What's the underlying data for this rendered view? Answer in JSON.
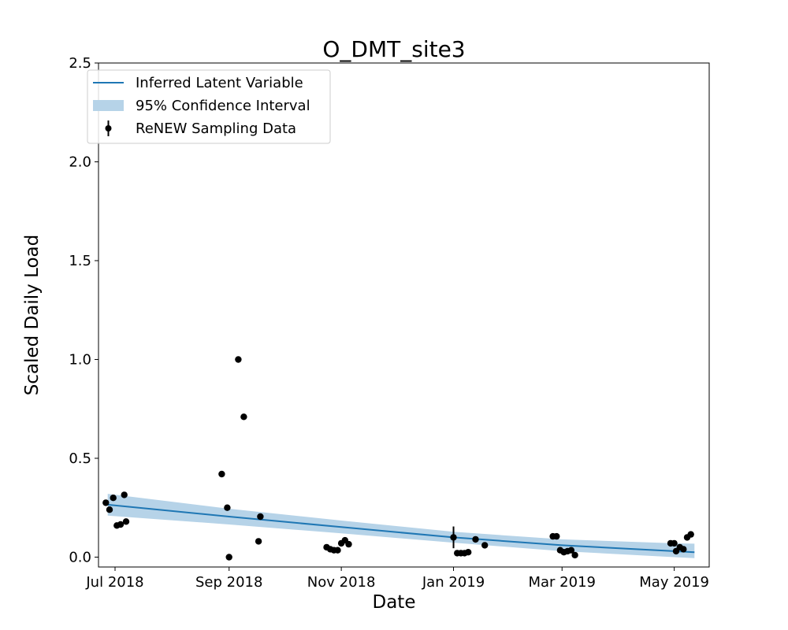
{
  "chart_data": {
    "type": "scatter",
    "title": "O_DMT_site3",
    "xlabel": "Date",
    "ylabel": "Scaled Daily Load",
    "xlim": [
      "2018-06-22",
      "2019-05-20"
    ],
    "ylim": [
      -0.05,
      2.5
    ],
    "x_ticks": [
      {
        "date": "2018-07-01",
        "label": "Jul 2018"
      },
      {
        "date": "2018-09-01",
        "label": "Sep 2018"
      },
      {
        "date": "2018-11-01",
        "label": "Nov 2018"
      },
      {
        "date": "2019-01-01",
        "label": "Jan 2019"
      },
      {
        "date": "2019-03-01",
        "label": "Mar 2019"
      },
      {
        "date": "2019-05-01",
        "label": "May 2019"
      }
    ],
    "y_ticks": [
      {
        "value": 0.0,
        "label": "0.0"
      },
      {
        "value": 0.5,
        "label": "0.5"
      },
      {
        "value": 1.0,
        "label": "1.0"
      },
      {
        "value": 1.5,
        "label": "1.5"
      },
      {
        "value": 2.0,
        "label": "2.0"
      },
      {
        "value": 2.5,
        "label": "2.5"
      }
    ],
    "grid": false,
    "legend_position": "top-left",
    "legend": [
      {
        "label": "Inferred Latent Variable",
        "kind": "line"
      },
      {
        "label": "95% Confidence Interval",
        "kind": "band"
      },
      {
        "label": "ReNEW Sampling Data",
        "kind": "errorbar"
      }
    ],
    "colors": {
      "line": "#1f77b4",
      "band": "#b6d3e8",
      "points": "#000000"
    },
    "series": [
      {
        "name": "Inferred Latent Variable",
        "kind": "line",
        "x": [
          "2018-06-27",
          "2018-09-01",
          "2018-11-01",
          "2019-01-01",
          "2019-03-01",
          "2019-05-01",
          "2019-05-12"
        ],
        "y": [
          0.265,
          0.205,
          0.152,
          0.1,
          0.06,
          0.03,
          0.025
        ]
      },
      {
        "name": "95% Confidence Interval",
        "kind": "band",
        "x": [
          "2018-06-27",
          "2018-09-01",
          "2018-11-01",
          "2019-01-01",
          "2019-03-01",
          "2019-05-01",
          "2019-05-12"
        ],
        "lower": [
          0.21,
          0.165,
          0.12,
          0.073,
          0.03,
          0.0,
          -0.005
        ],
        "upper": [
          0.32,
          0.245,
          0.185,
          0.128,
          0.09,
          0.07,
          0.068
        ]
      },
      {
        "name": "ReNEW Sampling Data",
        "kind": "scatter",
        "points": [
          {
            "x": "2018-06-26",
            "y": 0.275
          },
          {
            "x": "2018-06-28",
            "y": 0.24
          },
          {
            "x": "2018-06-30",
            "y": 0.3
          },
          {
            "x": "2018-07-02",
            "y": 0.16
          },
          {
            "x": "2018-07-04",
            "y": 0.165
          },
          {
            "x": "2018-07-06",
            "y": 0.315
          },
          {
            "x": "2018-07-07",
            "y": 0.18
          },
          {
            "x": "2018-08-28",
            "y": 0.42
          },
          {
            "x": "2018-08-31",
            "y": 0.25
          },
          {
            "x": "2018-09-01",
            "y": 0.0
          },
          {
            "x": "2018-09-06",
            "y": 1.0
          },
          {
            "x": "2018-09-09",
            "y": 0.71
          },
          {
            "x": "2018-09-17",
            "y": 0.08
          },
          {
            "x": "2018-09-18",
            "y": 0.205
          },
          {
            "x": "2018-10-24",
            "y": 0.05
          },
          {
            "x": "2018-10-26",
            "y": 0.04
          },
          {
            "x": "2018-10-28",
            "y": 0.035
          },
          {
            "x": "2018-10-30",
            "y": 0.035
          },
          {
            "x": "2018-11-01",
            "y": 0.07
          },
          {
            "x": "2018-11-03",
            "y": 0.085
          },
          {
            "x": "2018-11-05",
            "y": 0.065
          },
          {
            "x": "2019-01-01",
            "y": 0.1,
            "err": 0.055
          },
          {
            "x": "2019-01-03",
            "y": 0.02
          },
          {
            "x": "2019-01-05",
            "y": 0.02
          },
          {
            "x": "2019-01-07",
            "y": 0.02
          },
          {
            "x": "2019-01-09",
            "y": 0.025
          },
          {
            "x": "2019-01-13",
            "y": 0.09
          },
          {
            "x": "2019-01-18",
            "y": 0.06
          },
          {
            "x": "2019-02-24",
            "y": 0.105
          },
          {
            "x": "2019-02-26",
            "y": 0.105
          },
          {
            "x": "2019-02-28",
            "y": 0.035
          },
          {
            "x": "2019-03-02",
            "y": 0.025
          },
          {
            "x": "2019-03-04",
            "y": 0.03
          },
          {
            "x": "2019-03-06",
            "y": 0.035
          },
          {
            "x": "2019-03-08",
            "y": 0.01
          },
          {
            "x": "2019-04-29",
            "y": 0.07
          },
          {
            "x": "2019-05-01",
            "y": 0.07
          },
          {
            "x": "2019-05-02",
            "y": 0.03
          },
          {
            "x": "2019-05-04",
            "y": 0.05
          },
          {
            "x": "2019-05-06",
            "y": 0.04
          },
          {
            "x": "2019-05-08",
            "y": 0.1
          },
          {
            "x": "2019-05-10",
            "y": 0.115
          }
        ]
      }
    ]
  }
}
